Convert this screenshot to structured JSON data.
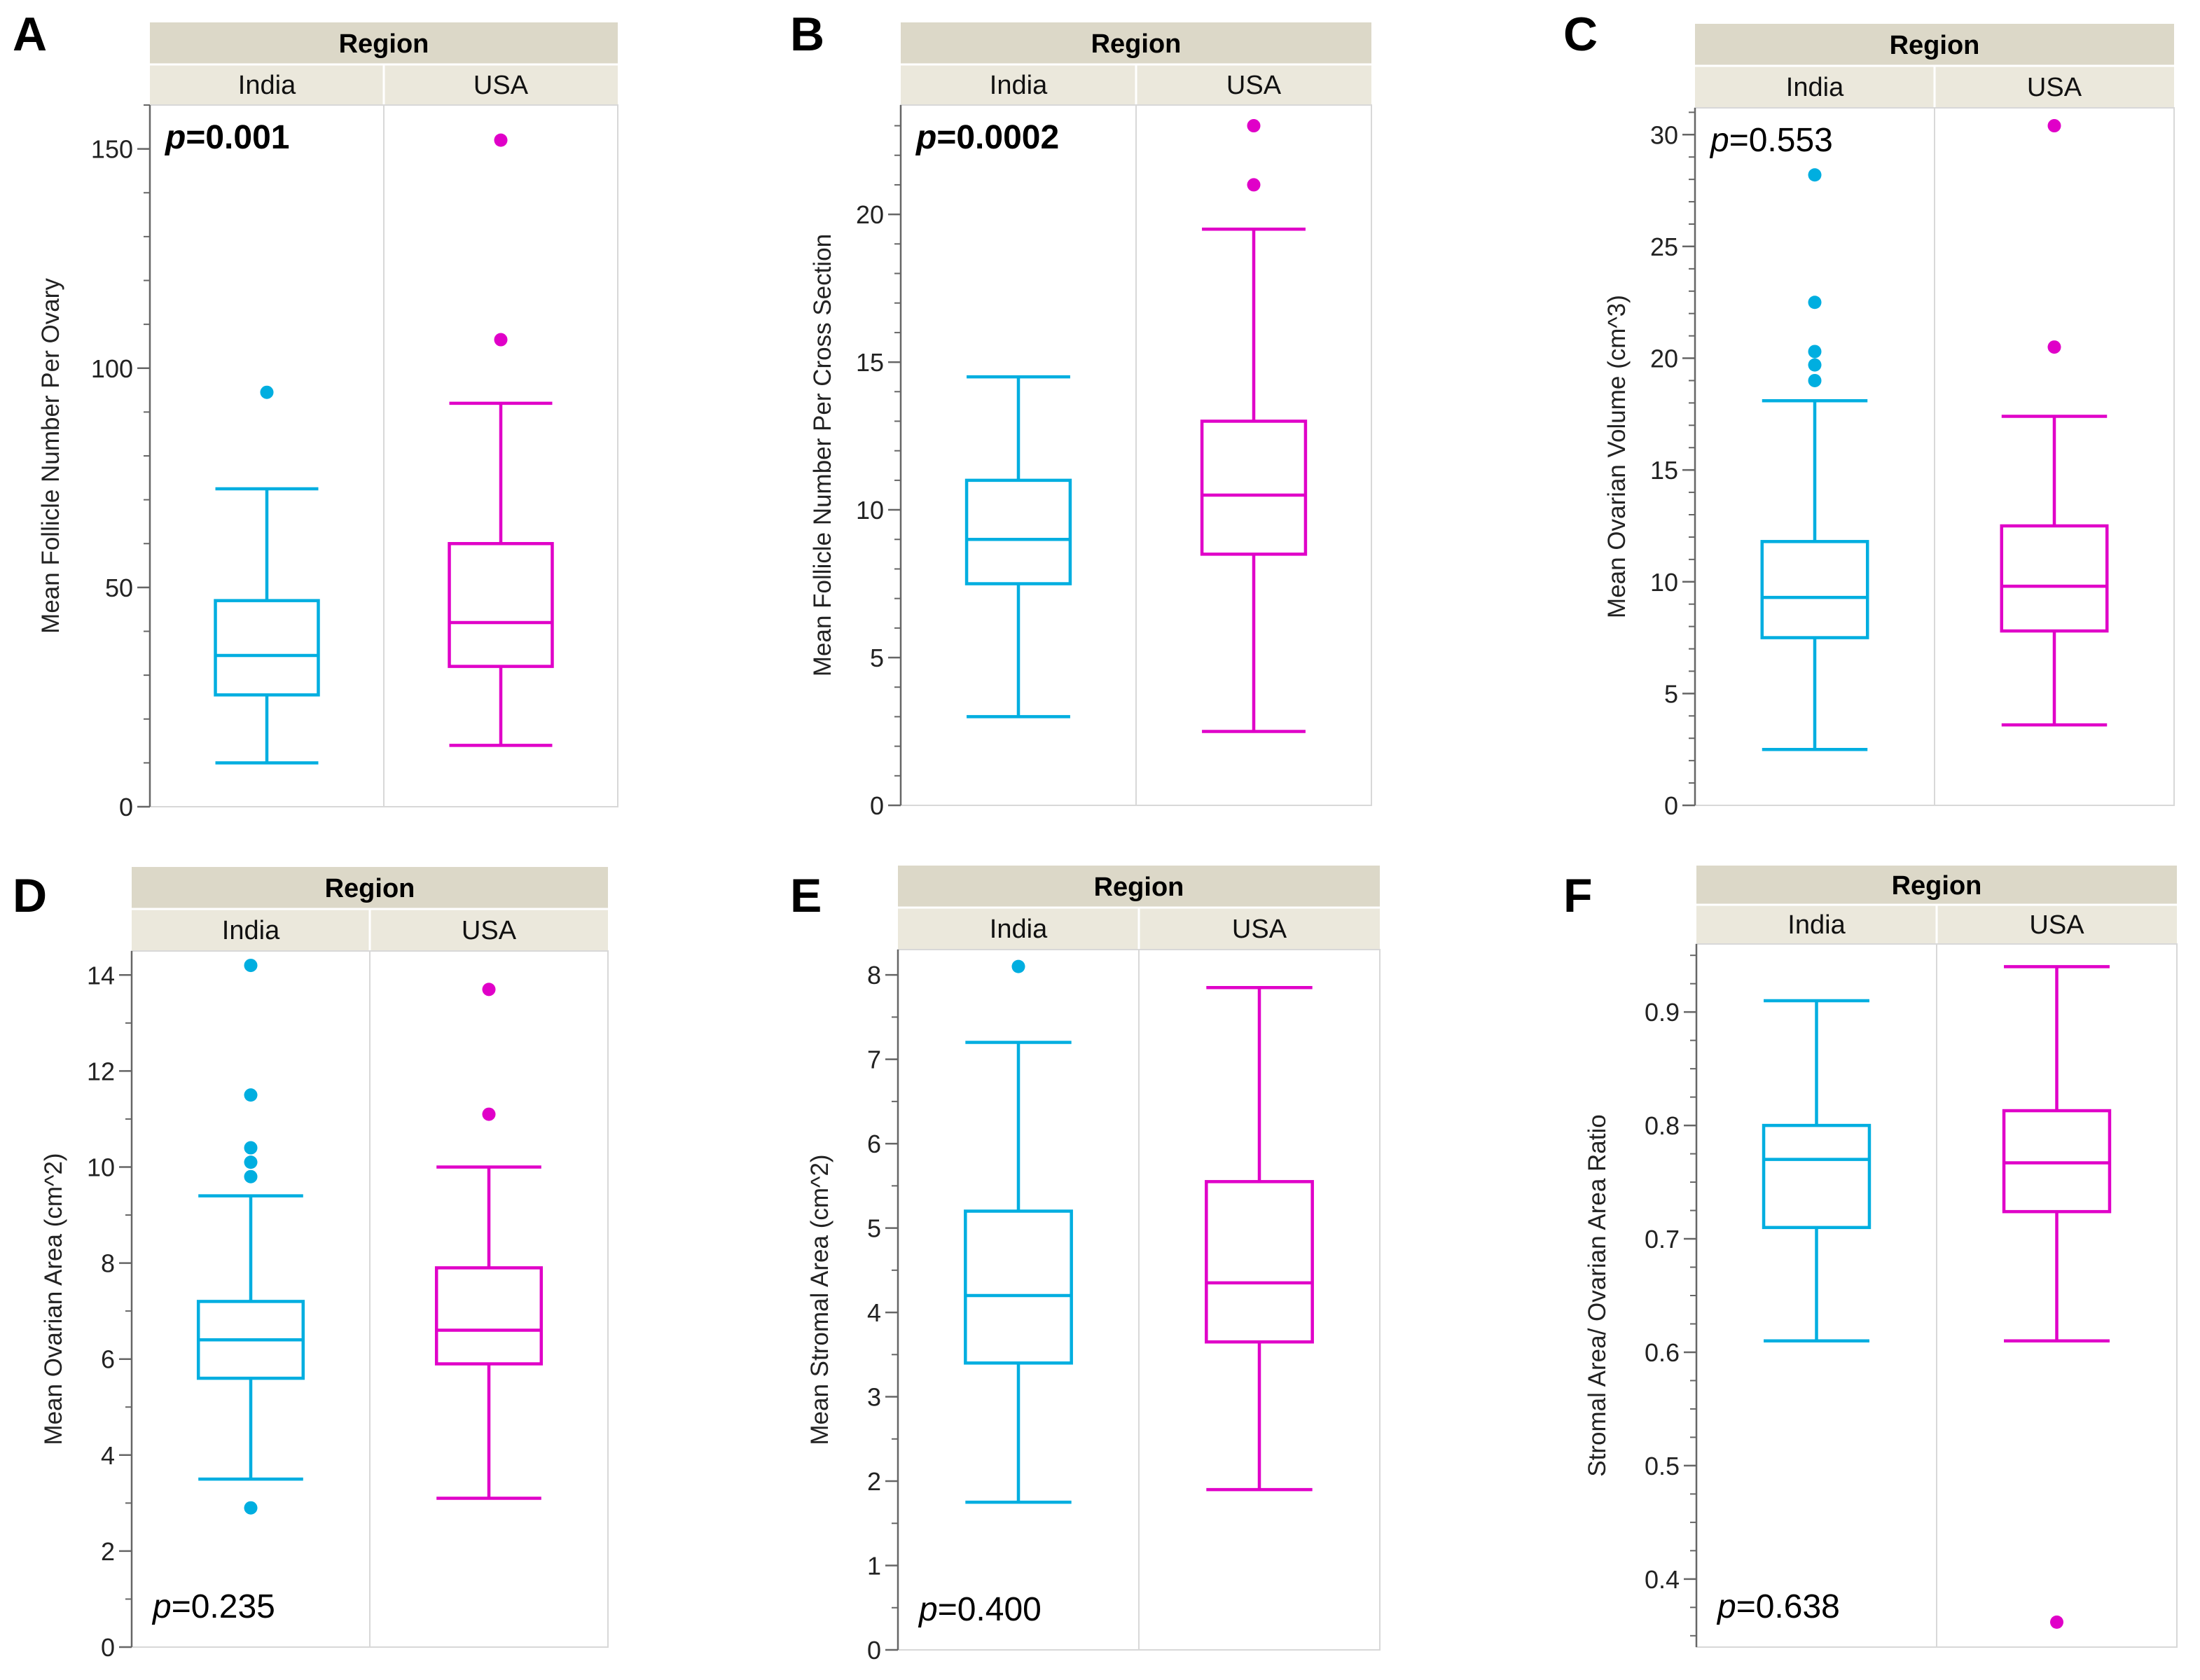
{
  "figure": {
    "colors": {
      "india": "#00aee0",
      "usa": "#e000c8",
      "header_bg": "#dcd8c8",
      "subheader_bg": "#ebe8dc",
      "axis": "#666666",
      "divider": "#d8d8d8"
    }
  },
  "chart_data": [
    {
      "panel": "A",
      "type": "box",
      "header": "Region",
      "categories": [
        "India",
        "USA"
      ],
      "ylabel": "Mean Follicle Number Per Ovary",
      "ylim": [
        0,
        160
      ],
      "yticks": [
        0,
        50,
        100,
        150
      ],
      "minor_step": 10,
      "p_label": "p",
      "p_value": "=0.001",
      "p_bold": true,
      "p_position": "top-left",
      "series": [
        {
          "name": "India",
          "color": "#00aee0",
          "min": 10,
          "q1": 25.5,
          "median": 34.5,
          "q3": 47,
          "max": 72.5,
          "outliers": [
            94.5
          ]
        },
        {
          "name": "USA",
          "color": "#e000c8",
          "min": 14,
          "q1": 32,
          "median": 42,
          "q3": 60,
          "max": 92,
          "outliers": [
            106.5,
            152
          ]
        }
      ]
    },
    {
      "panel": "B",
      "type": "box",
      "header": "Region",
      "categories": [
        "India",
        "USA"
      ],
      "ylabel": "Mean Follicle Number Per Cross Section",
      "ylim": [
        0,
        23.7
      ],
      "yticks": [
        0,
        5,
        10,
        15,
        20
      ],
      "minor_step": 1,
      "p_label": "p",
      "p_value": "=0.0002",
      "p_bold": true,
      "p_position": "top-left",
      "series": [
        {
          "name": "India",
          "color": "#00aee0",
          "min": 3,
          "q1": 7.5,
          "median": 9,
          "q3": 11,
          "max": 14.5,
          "outliers": []
        },
        {
          "name": "USA",
          "color": "#e000c8",
          "min": 2.5,
          "q1": 8.5,
          "median": 10.5,
          "q3": 13,
          "max": 19.5,
          "outliers": [
            21,
            23
          ]
        }
      ]
    },
    {
      "panel": "C",
      "type": "box",
      "header": "Region",
      "categories": [
        "India",
        "USA"
      ],
      "ylabel": "Mean Ovarian Volume (cm^3)",
      "ylim": [
        0,
        31.2
      ],
      "yticks": [
        0,
        5,
        10,
        15,
        20,
        25,
        30
      ],
      "minor_step": 1,
      "p_label": "p",
      "p_value": "=0.553",
      "p_bold": false,
      "p_position": "top-left",
      "series": [
        {
          "name": "India",
          "color": "#00aee0",
          "min": 2.5,
          "q1": 7.5,
          "median": 9.3,
          "q3": 11.8,
          "max": 18.1,
          "outliers": [
            19,
            19.7,
            20.3,
            22.5,
            28.2
          ]
        },
        {
          "name": "USA",
          "color": "#e000c8",
          "min": 3.6,
          "q1": 7.8,
          "median": 9.8,
          "q3": 12.5,
          "max": 17.4,
          "outliers": [
            20.5,
            30.4
          ]
        }
      ]
    },
    {
      "panel": "D",
      "type": "box",
      "header": "Region",
      "categories": [
        "India",
        "USA"
      ],
      "ylabel": "Mean Ovarian Area (cm^2)",
      "ylim": [
        0,
        14.5
      ],
      "yticks": [
        0,
        2,
        4,
        6,
        8,
        10,
        12,
        14
      ],
      "minor_step": 1,
      "p_label": "p",
      "p_value": "=0.235",
      "p_bold": false,
      "p_position": "bottom-left",
      "series": [
        {
          "name": "India",
          "color": "#00aee0",
          "min": 3.5,
          "q1": 5.6,
          "median": 6.4,
          "q3": 7.2,
          "max": 9.4,
          "outliers": [
            2.9,
            9.8,
            10.1,
            10.4,
            11.5,
            14.2
          ]
        },
        {
          "name": "USA",
          "color": "#e000c8",
          "min": 3.1,
          "q1": 5.9,
          "median": 6.6,
          "q3": 7.9,
          "max": 10,
          "outliers": [
            11.1,
            13.7
          ]
        }
      ]
    },
    {
      "panel": "E",
      "type": "box",
      "header": "Region",
      "categories": [
        "India",
        "USA"
      ],
      "ylabel": "Mean Stromal Area (cm^2)",
      "ylim": [
        0,
        8.3
      ],
      "yticks": [
        0,
        1,
        2,
        3,
        4,
        5,
        6,
        7,
        8
      ],
      "minor_step": 0.5,
      "p_label": "p",
      "p_value": "=0.400",
      "p_bold": false,
      "p_position": "bottom-left",
      "series": [
        {
          "name": "India",
          "color": "#00aee0",
          "min": 1.75,
          "q1": 3.4,
          "median": 4.2,
          "q3": 5.2,
          "max": 7.2,
          "outliers": [
            8.1
          ]
        },
        {
          "name": "USA",
          "color": "#e000c8",
          "min": 1.9,
          "q1": 3.65,
          "median": 4.35,
          "q3": 5.55,
          "max": 7.85,
          "outliers": []
        }
      ]
    },
    {
      "panel": "F",
      "type": "box",
      "header": "Region",
      "categories": [
        "India",
        "USA"
      ],
      "ylabel": "Stromal Area/ Ovarian Area Ratio",
      "ylim": [
        0.34,
        0.96
      ],
      "yticks": [
        0.4,
        0.5,
        0.6,
        0.7,
        0.8,
        0.9
      ],
      "minor_step": 0.025,
      "p_label": "p",
      "p_value": "=0.638",
      "p_bold": false,
      "p_position": "bottom-left",
      "series": [
        {
          "name": "India",
          "color": "#00aee0",
          "min": 0.61,
          "q1": 0.71,
          "median": 0.77,
          "q3": 0.8,
          "max": 0.91,
          "outliers": []
        },
        {
          "name": "USA",
          "color": "#e000c8",
          "min": 0.61,
          "q1": 0.724,
          "median": 0.767,
          "q3": 0.813,
          "max": 0.94,
          "outliers": [
            0.362
          ]
        }
      ]
    }
  ]
}
